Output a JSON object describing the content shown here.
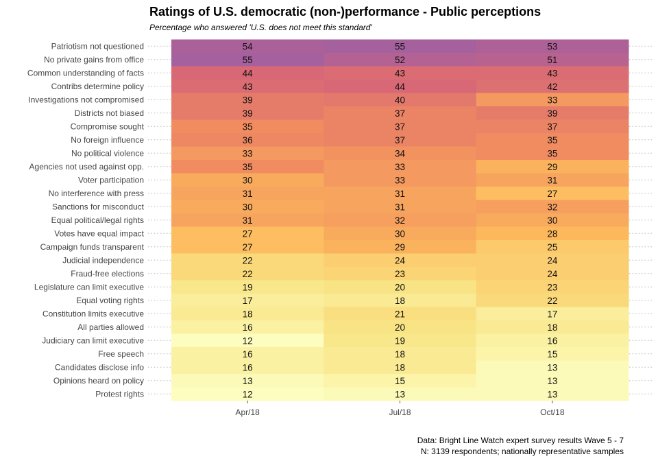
{
  "chart_data": {
    "type": "heatmap",
    "title": "Ratings of U.S. democratic (non-)performance - Public perceptions",
    "subtitle": "Percentage who answered 'U.S. does not meet this standard'",
    "x": [
      "Apr/18",
      "Jul/18",
      "Oct/18"
    ],
    "rows": [
      {
        "label": "Patriotism not questioned",
        "values": [
          54,
          55,
          53
        ]
      },
      {
        "label": "No private gains from office",
        "values": [
          55,
          52,
          51
        ]
      },
      {
        "label": "Common understanding of facts",
        "values": [
          44,
          43,
          43
        ]
      },
      {
        "label": "Contribs determine policy",
        "values": [
          43,
          44,
          42
        ]
      },
      {
        "label": "Investigations not compromised",
        "values": [
          39,
          40,
          33
        ]
      },
      {
        "label": "Districts not biased",
        "values": [
          39,
          37,
          39
        ]
      },
      {
        "label": "Compromise sought",
        "values": [
          35,
          37,
          37
        ]
      },
      {
        "label": "No foreign influence",
        "values": [
          36,
          37,
          35
        ]
      },
      {
        "label": "No political violence",
        "values": [
          33,
          34,
          35
        ]
      },
      {
        "label": "Agencies not used against opp.",
        "values": [
          35,
          33,
          29
        ]
      },
      {
        "label": "Voter participation",
        "values": [
          30,
          33,
          31
        ]
      },
      {
        "label": "No interference with press",
        "values": [
          31,
          31,
          27
        ]
      },
      {
        "label": "Sanctions for misconduct",
        "values": [
          30,
          31,
          32
        ]
      },
      {
        "label": "Equal political/legal rights",
        "values": [
          31,
          32,
          30
        ]
      },
      {
        "label": "Votes have equal impact",
        "values": [
          27,
          30,
          28
        ]
      },
      {
        "label": "Campaign funds transparent",
        "values": [
          27,
          29,
          25
        ]
      },
      {
        "label": "Judicial independence",
        "values": [
          22,
          24,
          24
        ]
      },
      {
        "label": "Fraud-free elections",
        "values": [
          22,
          23,
          24
        ]
      },
      {
        "label": "Legislature can limit executive",
        "values": [
          19,
          20,
          23
        ]
      },
      {
        "label": "Equal voting rights",
        "values": [
          17,
          18,
          22
        ]
      },
      {
        "label": "Constitution limits executive",
        "values": [
          18,
          21,
          17
        ]
      },
      {
        "label": "All parties allowed",
        "values": [
          16,
          20,
          18
        ]
      },
      {
        "label": "Judiciary can limit executive",
        "values": [
          12,
          19,
          16
        ]
      },
      {
        "label": "Free speech",
        "values": [
          16,
          18,
          15
        ]
      },
      {
        "label": "Candidates disclose info",
        "values": [
          16,
          18,
          13
        ]
      },
      {
        "label": "Opinions heard on policy",
        "values": [
          13,
          15,
          13
        ]
      },
      {
        "label": "Protest rights",
        "values": [
          12,
          13,
          13
        ]
      }
    ],
    "color_scale": {
      "low": "#fcfdbf",
      "mid1": "#fdc865",
      "mid2": "#f68f58",
      "mid3": "#d8607a",
      "high": "#a3609e"
    },
    "value_range": [
      12,
      55
    ],
    "grid": "dotted horizontal guides",
    "legend": "none"
  },
  "caption": {
    "line1": "Data: Bright Line Watch expert survey results Wave 5 - 7",
    "line2": "N: 3139 respondents; nationally representative samples"
  }
}
